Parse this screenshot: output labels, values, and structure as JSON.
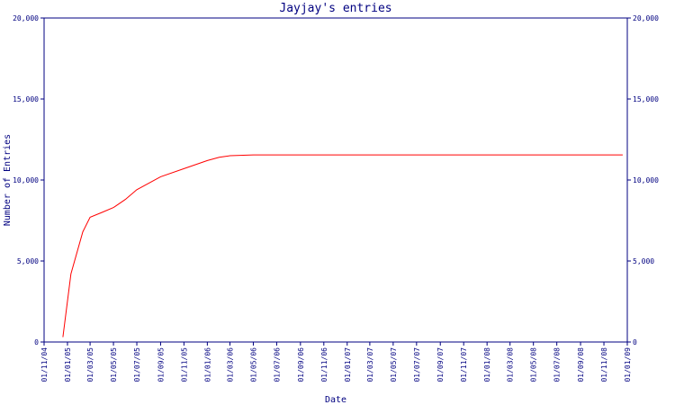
{
  "chart_data": {
    "type": "line",
    "title": "Jayjay's entries",
    "xlabel": "Date",
    "ylabel": "Number of Entries",
    "colors": {
      "axis": "#000080",
      "text": "#000080",
      "series": "#ff0000"
    },
    "ylim": [
      0,
      20000
    ],
    "y_ticks": [
      0,
      5000,
      10000,
      15000,
      20000
    ],
    "y_tick_labels": [
      "0",
      "5,000",
      "10,000",
      "15,000",
      "20,000"
    ],
    "x_range": [
      "2004-11-01",
      "2009-01-01"
    ],
    "x_ticks": [
      "2004-11-01",
      "2005-01-01",
      "2005-03-01",
      "2005-05-01",
      "2005-07-01",
      "2005-09-01",
      "2005-11-01",
      "2006-01-01",
      "2006-03-01",
      "2006-05-01",
      "2006-07-01",
      "2006-09-01",
      "2006-11-01",
      "2007-01-01",
      "2007-03-01",
      "2007-05-01",
      "2007-07-01",
      "2007-09-01",
      "2007-11-01",
      "2008-01-01",
      "2008-03-01",
      "2008-05-01",
      "2008-07-01",
      "2008-09-01",
      "2008-11-01",
      "2009-01-01"
    ],
    "x_tick_labels": [
      "01/11/04",
      "01/01/05",
      "01/03/05",
      "01/05/05",
      "01/07/05",
      "01/09/05",
      "01/11/05",
      "01/01/06",
      "01/03/06",
      "01/05/06",
      "01/07/06",
      "01/09/06",
      "01/11/06",
      "01/01/07",
      "01/03/07",
      "01/05/07",
      "01/07/07",
      "01/09/07",
      "01/11/07",
      "01/01/08",
      "01/03/08",
      "01/05/08",
      "01/07/08",
      "01/09/08",
      "01/11/08",
      "01/01/09"
    ],
    "grid": false,
    "legend": false,
    "series": [
      {
        "x": [
          "2004-12-20",
          "2005-01-10",
          "2005-02-10",
          "2005-03-01",
          "2005-04-01",
          "2005-05-01",
          "2005-06-01",
          "2005-07-01",
          "2005-09-01",
          "2005-11-01",
          "2006-01-01",
          "2006-02-01",
          "2006-03-01",
          "2006-05-01",
          "2006-07-01",
          "2008-12-20"
        ],
        "y": [
          300,
          4200,
          6800,
          7700,
          8000,
          8300,
          8800,
          9400,
          10200,
          10700,
          11200,
          11400,
          11500,
          11550,
          11550,
          11550
        ]
      }
    ]
  }
}
